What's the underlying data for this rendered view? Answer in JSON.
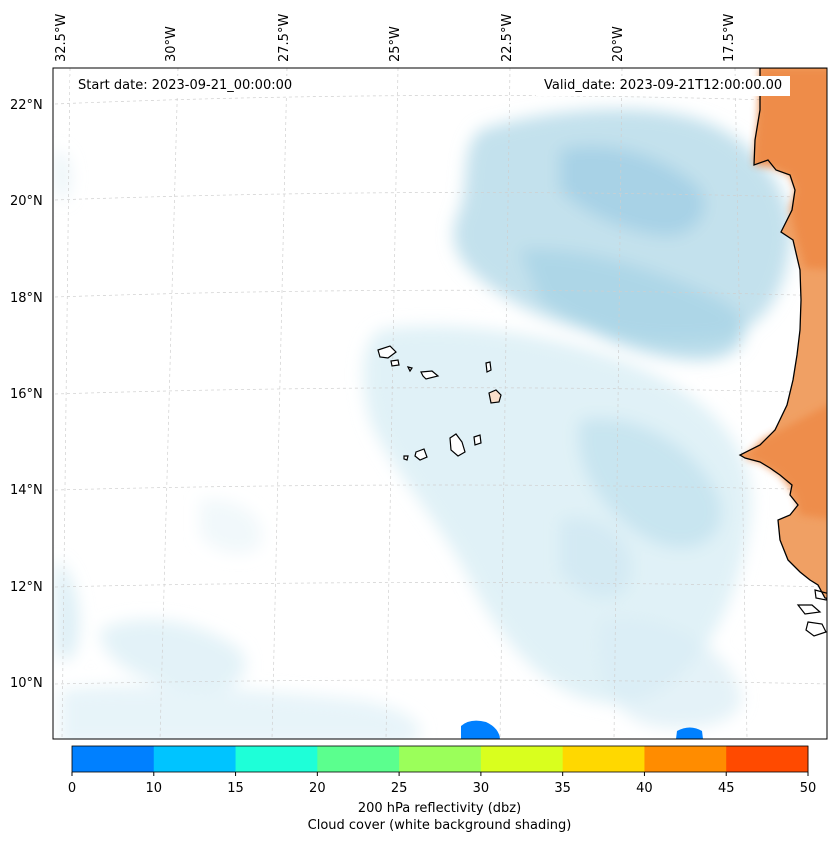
{
  "map": {
    "start_date_label": "Start date: 2023-09-21_00:00:00",
    "valid_date_label": "Valid_date: 2023-09-21T12:00:00.00",
    "longitude_labels": [
      "32.5°W",
      "30°W",
      "27.5°W",
      "25°W",
      "22.5°W",
      "20°W",
      "17.5°W"
    ],
    "latitude_labels": [
      "22°N",
      "20°N",
      "18°N",
      "16°N",
      "14°N",
      "12°N",
      "10°N"
    ]
  },
  "colorbar": {
    "ticks": [
      "0",
      "10",
      "15",
      "20",
      "25",
      "30",
      "35",
      "40",
      "45",
      "50"
    ],
    "colors": [
      "#0080ff",
      "#00c4ff",
      "#1effd8",
      "#5bff8e",
      "#9bff5a",
      "#d9ff1e",
      "#ffd800",
      "#ff8c00",
      "#ff4a00"
    ],
    "label": "200 hPa reflectivity (dbz)",
    "sublabel": "Cloud cover (white background shading)"
  },
  "legend_colors": {
    "cloud": "#a9d4e6",
    "land": "#f08c44",
    "reflectivity": "#0080ff"
  }
}
